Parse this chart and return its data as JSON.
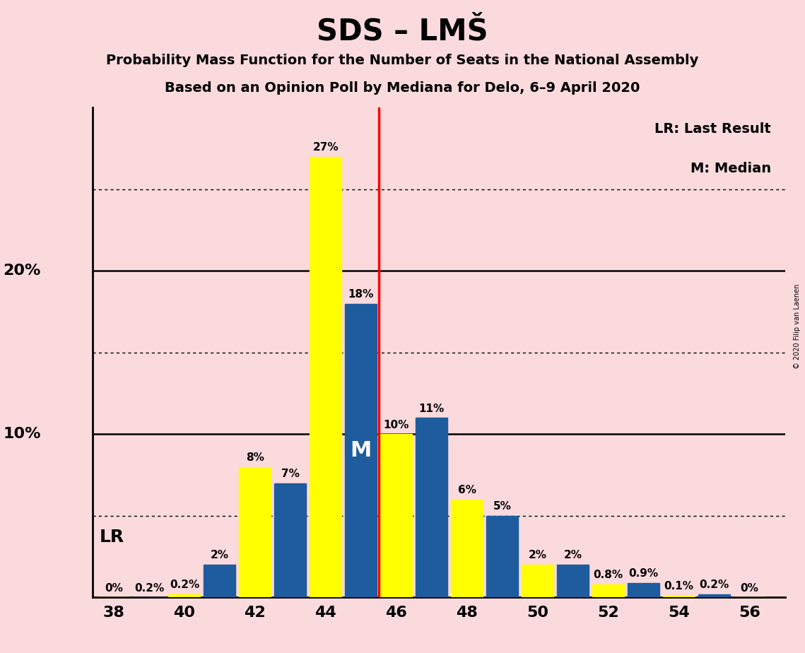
{
  "title": "SDS – LMŠ",
  "subtitle1": "Probability Mass Function for the Number of Seats in the National Assembly",
  "subtitle2": "Based on an Opinion Poll by Mediana for Delo, 6–9 April 2020",
  "copyright": "© 2020 Filip van Laenen",
  "background_color": "#fadadd",
  "yellow_seats": [
    38,
    40,
    42,
    44,
    46,
    48,
    50,
    52,
    54,
    56
  ],
  "yellow_pmf": [
    0.0,
    0.2,
    8.0,
    27.0,
    10.0,
    6.0,
    2.0,
    0.8,
    0.1,
    0.0
  ],
  "blue_seats": [
    39,
    41,
    43,
    45,
    47,
    49,
    51,
    53,
    55
  ],
  "blue_lr": [
    0.0,
    2.0,
    7.0,
    18.0,
    11.0,
    5.0,
    2.0,
    0.9,
    0.2
  ],
  "yellow_color": "#ffff00",
  "blue_color": "#1e5c9e",
  "red_line_x": 45.5,
  "bar_width": 0.9,
  "xlim": [
    37.4,
    57.0
  ],
  "ylim": [
    0,
    30
  ],
  "xtick_positions": [
    38,
    40,
    42,
    44,
    46,
    48,
    50,
    52,
    54,
    56
  ],
  "solid_gridlines": [
    10,
    20
  ],
  "dotted_gridlines": [
    5,
    15,
    25
  ],
  "legend_text1": "LR: Last Result",
  "legend_text2": "M: Median",
  "zero_label_seats_yellow": [
    38,
    56
  ],
  "zero_label_seats_blue": [
    39
  ]
}
